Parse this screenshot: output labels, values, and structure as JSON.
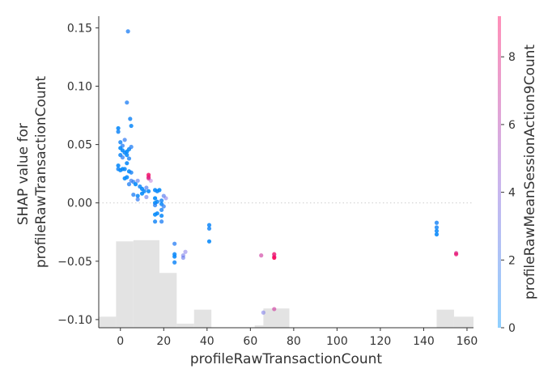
{
  "chart_data": {
    "type": "scatter",
    "xlabel": "profileRawTransactionCount",
    "ylabel_lines": [
      "SHAP value for",
      "profileRawTransactionCount"
    ],
    "colorbar_label": "profileRawMeanSessionAction9Count",
    "xlim": [
      -10,
      163
    ],
    "ylim": [
      -0.107,
      0.16
    ],
    "x_ticks": [
      0,
      20,
      40,
      60,
      80,
      100,
      120,
      140,
      160
    ],
    "y_ticks": [
      0.15,
      0.1,
      0.05,
      0.0,
      -0.05,
      -0.1
    ],
    "y_tick_labels": [
      "0.15",
      "0.10",
      "0.05",
      "0.00",
      "−0.05",
      "−0.10"
    ],
    "colorbar_range": [
      0,
      9.2
    ],
    "colorbar_ticks": [
      0,
      2,
      4,
      6,
      8
    ],
    "colors": {
      "low": "#008bfb",
      "mid": "#a060e0",
      "high": "#ff0052",
      "hist": "#e3e3e3",
      "zero_line": "#cccccc"
    },
    "histogram": [
      {
        "x0": -10,
        "x1": -2,
        "h": 0.0095
      },
      {
        "x0": -2,
        "x1": 6,
        "h": 0.074
      },
      {
        "x0": 6,
        "x1": 18,
        "h": 0.075
      },
      {
        "x0": 18,
        "x1": 26,
        "h": 0.047
      },
      {
        "x0": 26,
        "x1": 34,
        "h": 0.0035
      },
      {
        "x0": 34,
        "x1": 42,
        "h": 0.0155
      },
      {
        "x0": 62,
        "x1": 74,
        "h": 0.002
      },
      {
        "x0": 66,
        "x1": 78,
        "h": 0.0165
      },
      {
        "x0": 146,
        "x1": 154,
        "h": 0.0155
      },
      {
        "x0": 154,
        "x1": 163,
        "h": 0.0095
      }
    ],
    "points": [
      [
        3.5,
        0.147,
        1.0
      ],
      [
        3,
        0.086,
        1.0
      ],
      [
        4.5,
        0.072,
        0.6
      ],
      [
        5,
        0.066,
        0.3
      ],
      [
        -1,
        0.064,
        0.2
      ],
      [
        -1,
        0.061,
        0.5
      ],
      [
        2,
        0.054,
        1.5
      ],
      [
        0,
        0.052,
        0.6
      ],
      [
        1,
        0.049,
        1.2
      ],
      [
        0,
        0.047,
        0.1
      ],
      [
        1,
        0.045,
        0.2
      ],
      [
        4,
        0.046,
        0.3
      ],
      [
        5,
        0.048,
        1.1
      ],
      [
        3,
        0.044,
        0.1
      ],
      [
        2,
        0.043,
        0.3
      ],
      [
        0,
        0.041,
        0.4
      ],
      [
        3,
        0.041,
        0.2
      ],
      [
        1,
        0.039,
        1.3
      ],
      [
        4,
        0.038,
        0.8
      ],
      [
        3,
        0.034,
        0.2
      ],
      [
        -1,
        0.032,
        0.2
      ],
      [
        -1,
        0.029,
        0.5
      ],
      [
        1,
        0.029,
        0.1
      ],
      [
        2,
        0.029,
        0.3
      ],
      [
        0,
        0.028,
        0.2
      ],
      [
        4,
        0.027,
        0.1
      ],
      [
        5,
        0.026,
        0.7
      ],
      [
        3,
        0.022,
        0.2
      ],
      [
        2,
        0.021,
        0.1
      ],
      [
        5,
        0.019,
        1.6
      ],
      [
        8,
        0.019,
        2.4
      ],
      [
        6,
        0.018,
        1.3
      ],
      [
        4,
        0.016,
        1.0
      ],
      [
        7,
        0.016,
        0.1
      ],
      [
        9,
        0.014,
        0.4
      ],
      [
        10,
        0.012,
        0.1
      ],
      [
        12,
        0.013,
        2.0
      ],
      [
        11,
        0.01,
        0.3
      ],
      [
        10,
        0.008,
        0.1
      ],
      [
        13,
        0.01,
        0.2
      ],
      [
        6,
        0.007,
        1.0
      ],
      [
        8,
        0.006,
        0.3
      ],
      [
        12,
        0.005,
        2.6
      ],
      [
        8,
        0.003,
        1.5
      ],
      [
        13,
        0.024,
        8.6
      ],
      [
        13,
        0.022,
        8.2
      ],
      [
        13,
        0.021,
        7.5
      ],
      [
        14,
        0.019,
        5.2
      ],
      [
        16,
        0.011,
        0.2
      ],
      [
        17,
        0.01,
        0.3
      ],
      [
        18,
        0.011,
        0.1
      ],
      [
        20,
        0.006,
        2.2
      ],
      [
        21,
        0.004,
        3.3
      ],
      [
        19,
        0.002,
        0.6
      ],
      [
        16,
        0.004,
        0.0
      ],
      [
        17,
        0.001,
        0.4
      ],
      [
        16,
        0.0,
        0.1
      ],
      [
        19,
        -0.001,
        0.3
      ],
      [
        16,
        -0.002,
        1.0
      ],
      [
        20,
        -0.003,
        1.3
      ],
      [
        19,
        -0.006,
        0.8
      ],
      [
        17,
        -0.009,
        0.2
      ],
      [
        16,
        -0.01,
        0.1
      ],
      [
        19,
        -0.011,
        0.3
      ],
      [
        16,
        -0.016,
        0.6
      ],
      [
        19,
        -0.016,
        1.0
      ],
      [
        25,
        -0.035,
        1.2
      ],
      [
        25,
        -0.044,
        0.3
      ],
      [
        25,
        -0.046,
        0.2
      ],
      [
        25,
        -0.051,
        0.5
      ],
      [
        29,
        -0.045,
        3.0
      ],
      [
        29,
        -0.047,
        2.7
      ],
      [
        30,
        -0.042,
        3.4
      ],
      [
        41,
        -0.019,
        0.4
      ],
      [
        41,
        -0.022,
        0.6
      ],
      [
        41,
        -0.033,
        0.2
      ],
      [
        65,
        -0.045,
        6.8
      ],
      [
        66,
        -0.094,
        3.2
      ],
      [
        71,
        -0.044,
        8.4
      ],
      [
        71,
        -0.046,
        7.4
      ],
      [
        71,
        -0.047,
        9.0
      ],
      [
        71,
        -0.091,
        6.8
      ],
      [
        146,
        -0.017,
        0.7
      ],
      [
        146,
        -0.021,
        0.6
      ],
      [
        146,
        -0.024,
        0.3
      ],
      [
        146,
        -0.027,
        0.2
      ],
      [
        155,
        -0.043,
        7.2
      ],
      [
        155,
        -0.044,
        8.2
      ]
    ]
  }
}
